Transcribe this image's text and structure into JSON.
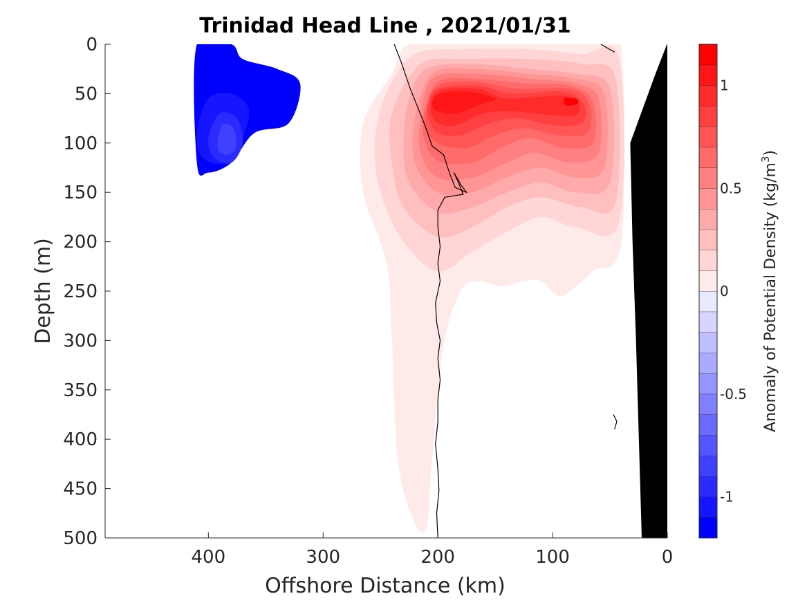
{
  "chart_data": {
    "type": "heatmap",
    "title": "Trinidad Head Line , 2021/01/31",
    "xlabel": "Offshore Distance (km)",
    "ylabel": "Depth (m)",
    "xlim": [
      490,
      0
    ],
    "ylim": [
      0,
      500
    ],
    "x_direction": "reversed",
    "y_direction": "reversed",
    "x_ticks": [
      {
        "value": 400,
        "label": "400"
      },
      {
        "value": 300,
        "label": "300"
      },
      {
        "value": 200,
        "label": "200"
      },
      {
        "value": 100,
        "label": "100"
      },
      {
        "value": 0,
        "label": "0"
      }
    ],
    "y_ticks": [
      {
        "value": 0,
        "label": "0"
      },
      {
        "value": 50,
        "label": "50"
      },
      {
        "value": 100,
        "label": "100"
      },
      {
        "value": 150,
        "label": "150"
      },
      {
        "value": 200,
        "label": "200"
      },
      {
        "value": 250,
        "label": "250"
      },
      {
        "value": 300,
        "label": "300"
      },
      {
        "value": 350,
        "label": "350"
      },
      {
        "value": 400,
        "label": "400"
      },
      {
        "value": 450,
        "label": "450"
      },
      {
        "value": 500,
        "label": "500"
      }
    ],
    "colorbar": {
      "title": "Anomaly of Potential Density (kg/m",
      "title_superscript": "3",
      "title_suffix": ")",
      "range": [
        -1.2,
        1.2
      ],
      "step": 0.1,
      "tick_labels": [
        {
          "value": 1,
          "label": "1"
        },
        {
          "value": 0.5,
          "label": "0.5"
        },
        {
          "value": 0,
          "label": "0"
        },
        {
          "value": -0.5,
          "label": "-0.5"
        },
        {
          "value": -1,
          "label": "-1"
        }
      ],
      "colors": {
        "neg": [
          "#0000ff",
          "#1515ff",
          "#2b2bff",
          "#4040ff",
          "#5555ff",
          "#6a6aff",
          "#8080ff",
          "#9595ff",
          "#aaaaff",
          "#bfbfff",
          "#d5d5ff",
          "#eaeaff"
        ],
        "pos": [
          "#ffeaea",
          "#ffd5d5",
          "#ffbfbf",
          "#ffaaaa",
          "#ff9595",
          "#ff8080",
          "#ff6a6a",
          "#ff5555",
          "#ff4040",
          "#ff2b2b",
          "#ff1515",
          "#ff0000"
        ]
      }
    },
    "series": [
      {
        "level": -0.1,
        "points": [
          [
            410,
            0
          ],
          [
            380,
            0
          ],
          [
            370,
            15
          ],
          [
            340,
            25
          ],
          [
            320,
            40
          ],
          [
            330,
            80
          ],
          [
            360,
            90
          ],
          [
            380,
            120
          ],
          [
            400,
            130
          ],
          [
            410,
            120
          ]
        ]
      },
      {
        "level": -0.2,
        "points": [
          [
            400,
            55
          ],
          [
            380,
            50
          ],
          [
            365,
            65
          ],
          [
            370,
            95
          ],
          [
            385,
            120
          ],
          [
            405,
            115
          ],
          [
            410,
            90
          ]
        ]
      },
      {
        "level": -0.3,
        "points": [
          [
            390,
            70
          ],
          [
            375,
            75
          ],
          [
            370,
            100
          ],
          [
            380,
            120
          ],
          [
            395,
            115
          ],
          [
            400,
            95
          ]
        ]
      },
      {
        "level": -0.4,
        "points": [
          [
            388,
            82
          ],
          [
            378,
            85
          ],
          [
            376,
            105
          ],
          [
            384,
            112
          ],
          [
            392,
            105
          ]
        ]
      },
      {
        "level": 0.1,
        "points": [
          [
            225,
            0
          ],
          [
            175,
            0
          ],
          [
            125,
            0
          ],
          [
            80,
            0
          ],
          [
            60,
            0
          ],
          [
            40,
            5
          ],
          [
            40,
            200
          ],
          [
            65,
            230
          ],
          [
            85,
            250
          ],
          [
            95,
            255
          ],
          [
            110,
            240
          ],
          [
            125,
            240
          ],
          [
            145,
            245
          ],
          [
            165,
            240
          ],
          [
            180,
            250
          ],
          [
            195,
            305
          ],
          [
            205,
            420
          ],
          [
            210,
            490
          ],
          [
            222,
            480
          ],
          [
            235,
            420
          ],
          [
            240,
            300
          ],
          [
            245,
            220
          ],
          [
            265,
            150
          ],
          [
            265,
            80
          ],
          [
            240,
            30
          ]
        ]
      },
      {
        "level": 0.2,
        "points": [
          [
            220,
            10
          ],
          [
            175,
            5
          ],
          [
            120,
            5
          ],
          [
            75,
            10
          ],
          [
            42,
            15
          ],
          [
            42,
            180
          ],
          [
            80,
            185
          ],
          [
            110,
            175
          ],
          [
            140,
            190
          ],
          [
            170,
            210
          ],
          [
            200,
            230
          ],
          [
            230,
            200
          ],
          [
            250,
            150
          ],
          [
            255,
            100
          ],
          [
            245,
            50
          ]
        ]
      },
      {
        "level": 0.3,
        "points": [
          [
            215,
            20
          ],
          [
            175,
            15
          ],
          [
            120,
            15
          ],
          [
            75,
            20
          ],
          [
            45,
            35
          ],
          [
            45,
            160
          ],
          [
            75,
            165
          ],
          [
            110,
            155
          ],
          [
            140,
            165
          ],
          [
            170,
            185
          ],
          [
            200,
            195
          ],
          [
            230,
            165
          ],
          [
            240,
            120
          ],
          [
            240,
            70
          ]
        ]
      },
      {
        "level": 0.4,
        "points": [
          [
            210,
            25
          ],
          [
            170,
            20
          ],
          [
            120,
            25
          ],
          [
            80,
            30
          ],
          [
            50,
            45
          ],
          [
            50,
            140
          ],
          [
            80,
            150
          ],
          [
            110,
            140
          ],
          [
            140,
            150
          ],
          [
            170,
            165
          ],
          [
            200,
            170
          ],
          [
            225,
            140
          ],
          [
            230,
            100
          ],
          [
            225,
            55
          ]
        ]
      },
      {
        "level": 0.5,
        "points": [
          [
            205,
            30
          ],
          [
            170,
            25
          ],
          [
            120,
            30
          ],
          [
            80,
            35
          ],
          [
            55,
            50
          ],
          [
            55,
            125
          ],
          [
            80,
            135
          ],
          [
            110,
            125
          ],
          [
            140,
            135
          ],
          [
            170,
            150
          ],
          [
            200,
            150
          ],
          [
            220,
            120
          ],
          [
            220,
            75
          ]
        ]
      },
      {
        "level": 0.6,
        "points": [
          [
            205,
            35
          ],
          [
            170,
            30
          ],
          [
            120,
            35
          ],
          [
            80,
            40
          ],
          [
            60,
            55
          ],
          [
            60,
            110
          ],
          [
            85,
            120
          ],
          [
            115,
            110
          ],
          [
            140,
            120
          ],
          [
            170,
            135
          ],
          [
            200,
            135
          ],
          [
            215,
            110
          ],
          [
            215,
            75
          ]
        ]
      },
      {
        "level": 0.7,
        "points": [
          [
            200,
            38
          ],
          [
            170,
            35
          ],
          [
            120,
            40
          ],
          [
            85,
            42
          ],
          [
            65,
            58
          ],
          [
            65,
            100
          ],
          [
            90,
            105
          ],
          [
            120,
            95
          ],
          [
            145,
            105
          ],
          [
            170,
            120
          ],
          [
            200,
            118
          ],
          [
            212,
            95
          ],
          [
            212,
            70
          ]
        ]
      },
      {
        "level": 0.8,
        "points": [
          [
            200,
            42
          ],
          [
            170,
            38
          ],
          [
            130,
            45
          ],
          [
            85,
            45
          ],
          [
            68,
            60
          ],
          [
            70,
            90
          ],
          [
            95,
            92
          ],
          [
            125,
            85
          ],
          [
            150,
            92
          ],
          [
            175,
            105
          ],
          [
            200,
            100
          ],
          [
            210,
            85
          ],
          [
            210,
            65
          ]
        ]
      },
      {
        "level": 0.9,
        "points": [
          [
            200,
            45
          ],
          [
            165,
            42
          ],
          [
            135,
            50
          ],
          [
            90,
            48
          ],
          [
            72,
            62
          ],
          [
            75,
            80
          ],
          [
            100,
            82
          ],
          [
            130,
            75
          ],
          [
            155,
            80
          ],
          [
            180,
            92
          ],
          [
            200,
            90
          ],
          [
            208,
            75
          ],
          [
            208,
            60
          ]
        ]
      },
      {
        "level": 1.0,
        "points": [
          [
            200,
            48
          ],
          [
            165,
            45
          ],
          [
            140,
            55
          ],
          [
            92,
            52
          ],
          [
            77,
            60
          ],
          [
            80,
            72
          ],
          [
            100,
            72
          ],
          [
            135,
            68
          ],
          [
            160,
            70
          ],
          [
            185,
            82
          ],
          [
            200,
            80
          ],
          [
            206,
            68
          ]
        ]
      },
      {
        "level": 1.1,
        "points": [
          [
            198,
            50
          ],
          [
            175,
            48
          ],
          [
            150,
            55
          ],
          [
            165,
            62
          ],
          [
            185,
            70
          ],
          [
            200,
            68
          ],
          [
            205,
            60
          ]
        ]
      },
      {
        "level": 1.2,
        "points": [
          [
            90,
            55
          ],
          [
            80,
            55
          ],
          [
            78,
            60
          ],
          [
            88,
            62
          ]
        ]
      }
    ],
    "zero_contour": [
      [
        238,
        0
      ],
      [
        232,
        18
      ],
      [
        224,
        45
      ],
      [
        212,
        80
      ],
      [
        205,
        103
      ],
      [
        195,
        112
      ],
      [
        190,
        130
      ],
      [
        185,
        145
      ],
      [
        175,
        150
      ],
      [
        180,
        142
      ],
      [
        186,
        130
      ],
      [
        182,
        140
      ],
      [
        178,
        152
      ],
      [
        194,
        155
      ],
      [
        200,
        168
      ],
      [
        200,
        185
      ],
      [
        198,
        205
      ],
      [
        200,
        222
      ],
      [
        198,
        240
      ],
      [
        202,
        262
      ],
      [
        201,
        282
      ],
      [
        198,
        300
      ],
      [
        200,
        318
      ],
      [
        198,
        340
      ],
      [
        200,
        360
      ],
      [
        200,
        382
      ],
      [
        202,
        405
      ],
      [
        200,
        430
      ],
      [
        199,
        452
      ],
      [
        201,
        475
      ],
      [
        200,
        500
      ]
    ],
    "small_contours": [
      [
        [
          58,
          0
        ],
        [
          46,
          8
        ]
      ],
      [
        [
          47,
          375
        ],
        [
          44,
          382
        ],
        [
          46,
          390
        ]
      ]
    ],
    "seafloor": [
      [
        0,
        0
      ],
      [
        0,
        500
      ],
      [
        22,
        500
      ],
      [
        27,
        300
      ],
      [
        30,
        200
      ],
      [
        32,
        100
      ],
      [
        10,
        30
      ],
      [
        0,
        0
      ]
    ]
  }
}
